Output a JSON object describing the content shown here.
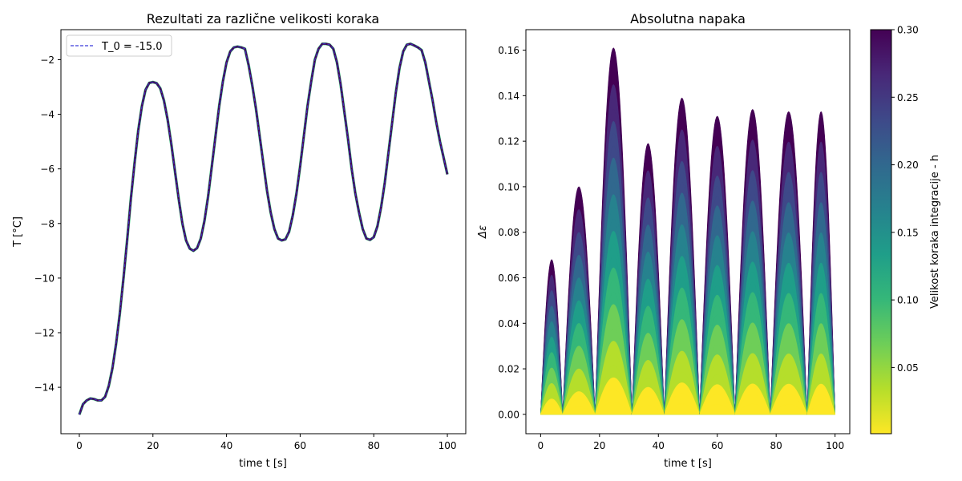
{
  "chart_data": [
    {
      "type": "line",
      "title": "Rezultati za različne velikosti koraka",
      "xlabel": "time t [s]",
      "ylabel": "T [°C]",
      "xlim": [
        -5,
        105
      ],
      "ylim": [
        -15.7,
        -0.9
      ],
      "xticks": [
        0,
        20,
        40,
        60,
        80,
        100
      ],
      "xtick_labels": [
        "0",
        "20",
        "40",
        "60",
        "80",
        "100"
      ],
      "yticks": [
        -2,
        -4,
        -6,
        -8,
        -10,
        -12,
        -14
      ],
      "ytick_labels": [
        "−2",
        "−4",
        "−6",
        "−8",
        "−10",
        "−12",
        "−14"
      ],
      "grid": false,
      "legend": {
        "placement": "top-left",
        "entries": [
          "T_0 = -15.0"
        ]
      },
      "series": [
        {
          "name": "T_0 = -15.0",
          "style": "dashed",
          "color": "#3b3bd9",
          "x": [
            0,
            1,
            2,
            3,
            4,
            5,
            6,
            7,
            8,
            9,
            10,
            11,
            12,
            13,
            14,
            15,
            16,
            17,
            18,
            19,
            20,
            21,
            22,
            23,
            24,
            25,
            26,
            27,
            28,
            29,
            30,
            31,
            32,
            33,
            34,
            35,
            36,
            37,
            38,
            39,
            40,
            41,
            42,
            43,
            44,
            45,
            46,
            47,
            48,
            49,
            50,
            51,
            52,
            53,
            54,
            55,
            56,
            57,
            58,
            59,
            60,
            61,
            62,
            63,
            64,
            65,
            66,
            67,
            68,
            69,
            70,
            71,
            72,
            73,
            74,
            75,
            76,
            77,
            78,
            79,
            80,
            81,
            82,
            83,
            84,
            85,
            86,
            87,
            88,
            89,
            90,
            91,
            92,
            93,
            94,
            95,
            96,
            97,
            98,
            99,
            100
          ],
          "y": [
            -15.0,
            -14.62,
            -14.48,
            -14.41,
            -14.43,
            -14.48,
            -14.48,
            -14.35,
            -13.95,
            -13.3,
            -12.4,
            -11.3,
            -10.0,
            -8.6,
            -7.1,
            -5.8,
            -4.6,
            -3.7,
            -3.1,
            -2.85,
            -2.82,
            -2.86,
            -3.05,
            -3.5,
            -4.2,
            -5.1,
            -6.1,
            -7.1,
            -8.0,
            -8.62,
            -8.92,
            -9.0,
            -8.9,
            -8.55,
            -7.9,
            -7.0,
            -5.9,
            -4.8,
            -3.7,
            -2.8,
            -2.1,
            -1.7,
            -1.55,
            -1.52,
            -1.55,
            -1.6,
            -2.2,
            -2.95,
            -3.8,
            -4.8,
            -5.8,
            -6.8,
            -7.6,
            -8.2,
            -8.55,
            -8.62,
            -8.58,
            -8.3,
            -7.7,
            -6.9,
            -5.9,
            -4.8,
            -3.7,
            -2.8,
            -2.0,
            -1.6,
            -1.42,
            -1.42,
            -1.45,
            -1.6,
            -2.1,
            -2.9,
            -3.9,
            -4.9,
            -6.0,
            -6.9,
            -7.6,
            -8.2,
            -8.55,
            -8.6,
            -8.5,
            -8.1,
            -7.4,
            -6.5,
            -5.4,
            -4.3,
            -3.2,
            -2.3,
            -1.7,
            -1.45,
            -1.42,
            -1.48,
            -1.55,
            -1.65,
            -2.1,
            -2.8,
            -3.5,
            -4.3,
            -5.0,
            -5.6,
            -6.2
          ]
        }
      ]
    },
    {
      "type": "area",
      "title": "Absolutna napaka",
      "xlabel": "time t [s]",
      "ylabel": "Δε",
      "xlim": [
        -5,
        105
      ],
      "ylim": [
        -0.0085,
        0.169
      ],
      "xticks": [
        0,
        20,
        40,
        60,
        80,
        100
      ],
      "xtick_labels": [
        "0",
        "20",
        "40",
        "60",
        "80",
        "100"
      ],
      "yticks": [
        0.0,
        0.02,
        0.04,
        0.06,
        0.08,
        0.1,
        0.12,
        0.14,
        0.16
      ],
      "ytick_labels": [
        "0.00",
        "0.02",
        "0.04",
        "0.06",
        "0.08",
        "0.10",
        "0.12",
        "0.14",
        "0.16"
      ],
      "grid": false,
      "zeros": [
        0,
        7.5,
        18.5,
        31.0,
        42.0,
        54.0,
        66.0,
        78.0,
        90.5,
        100
      ],
      "peaks": [
        {
          "x": 3.3,
          "y": 0.068
        },
        {
          "x": 13.0,
          "y": 0.1
        },
        {
          "x": 25.0,
          "y": 0.161
        },
        {
          "x": 37.0,
          "y": 0.119
        },
        {
          "x": 49.0,
          "y": 0.139
        },
        {
          "x": 61.0,
          "y": 0.131
        },
        {
          "x": 73.0,
          "y": 0.134
        },
        {
          "x": 85.0,
          "y": 0.133
        },
        {
          "x": 97.0,
          "y": 0.133
        }
      ],
      "colorbar": {
        "label": "Velikost koraka integracije - h",
        "min": 0.001,
        "max": 0.3,
        "ticks": [
          0.05,
          0.1,
          0.15,
          0.2,
          0.25,
          0.3
        ],
        "tick_labels": [
          "0.05",
          "0.10",
          "0.15",
          "0.20",
          "0.25",
          "0.30"
        ],
        "colormap": "viridis_r",
        "colors": [
          "#fde725",
          "#b5de2b",
          "#6ece58",
          "#35b779",
          "#1f9e89",
          "#26828e",
          "#31688e",
          "#3e4989",
          "#482878",
          "#440154"
        ]
      }
    }
  ]
}
